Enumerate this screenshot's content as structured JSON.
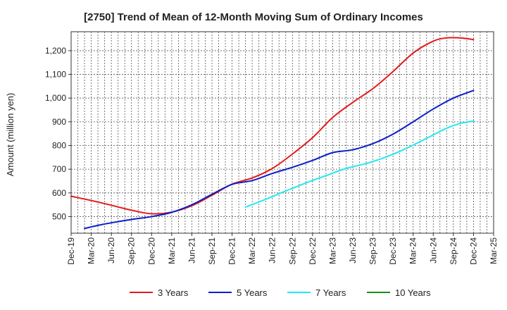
{
  "chart_data": {
    "type": "line",
    "title": "[2750]  Trend of Mean of 12-Month Moving Sum of Ordinary Incomes",
    "ylabel": "Amount (million yen)",
    "xlabel": "",
    "ylim": [
      430,
      1280
    ],
    "yticks": [
      500,
      600,
      700,
      800,
      900,
      1000,
      1100,
      1200
    ],
    "ytick_labels": [
      "500",
      "600",
      "700",
      "800",
      "900",
      "1,000",
      "1,100",
      "1,200"
    ],
    "x_range": [
      0,
      63
    ],
    "xticks": [
      0,
      3,
      6,
      9,
      12,
      15,
      18,
      21,
      24,
      27,
      30,
      33,
      36,
      39,
      42,
      45,
      48,
      51,
      54,
      57,
      60,
      63
    ],
    "categories": [
      "Dec-19",
      "Mar-20",
      "Jun-20",
      "Sep-20",
      "Dec-20",
      "Mar-21",
      "Jun-21",
      "Sep-21",
      "Dec-21",
      "Mar-22",
      "Jun-22",
      "Sep-22",
      "Dec-22",
      "Mar-23",
      "Jun-23",
      "Sep-23",
      "Dec-23",
      "Mar-24",
      "Jun-24",
      "Sep-24",
      "Dec-24",
      "Mar-25"
    ],
    "grid": true,
    "legend_position": "bottom",
    "series": [
      {
        "name": "3 Years",
        "color": "#e31a1c",
        "points": [
          [
            0,
            586
          ],
          [
            3,
            568
          ],
          [
            6,
            548
          ],
          [
            9,
            527
          ],
          [
            12,
            512
          ],
          [
            15,
            519
          ],
          [
            18,
            546
          ],
          [
            21,
            590
          ],
          [
            24,
            637
          ],
          [
            27,
            663
          ],
          [
            30,
            703
          ],
          [
            33,
            764
          ],
          [
            36,
            833
          ],
          [
            39,
            918
          ],
          [
            42,
            982
          ],
          [
            45,
            1040
          ],
          [
            48,
            1112
          ],
          [
            51,
            1190
          ],
          [
            54,
            1240
          ],
          [
            56,
            1254
          ],
          [
            58,
            1254
          ],
          [
            60,
            1247
          ]
        ]
      },
      {
        "name": "5 Years",
        "color": "#0a1fc8",
        "points": [
          [
            2,
            450
          ],
          [
            4,
            463
          ],
          [
            6,
            474
          ],
          [
            9,
            488
          ],
          [
            12,
            500
          ],
          [
            15,
            518
          ],
          [
            18,
            550
          ],
          [
            21,
            594
          ],
          [
            24,
            636
          ],
          [
            27,
            652
          ],
          [
            30,
            682
          ],
          [
            33,
            708
          ],
          [
            36,
            737
          ],
          [
            39,
            770
          ],
          [
            42,
            782
          ],
          [
            45,
            808
          ],
          [
            48,
            848
          ],
          [
            51,
            900
          ],
          [
            54,
            954
          ],
          [
            57,
            1000
          ],
          [
            60,
            1032
          ]
        ]
      },
      {
        "name": "7 Years",
        "color": "#22e8f0",
        "points": [
          [
            26,
            540
          ],
          [
            29,
            573
          ],
          [
            32,
            608
          ],
          [
            35,
            642
          ],
          [
            38,
            673
          ],
          [
            41,
            703
          ],
          [
            44,
            724
          ],
          [
            47,
            752
          ],
          [
            50,
            788
          ],
          [
            53,
            830
          ],
          [
            56,
            873
          ],
          [
            58,
            893
          ],
          [
            60,
            903
          ]
        ]
      },
      {
        "name": "10 Years",
        "color": "#1f8a1f",
        "points": []
      }
    ]
  }
}
